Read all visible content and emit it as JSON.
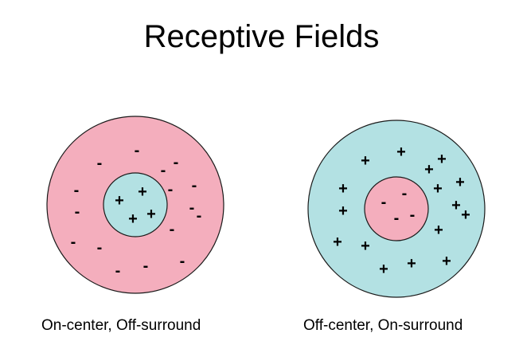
{
  "title": "Receptive Fields",
  "colors": {
    "pink": "#f4aebd",
    "cyan": "#b3e1e3",
    "outline": "#1a1a1a"
  },
  "fields": [
    {
      "caption": "On-center, Off-surround",
      "center_sign": "+",
      "surround_sign": "-",
      "center_color": "cyan",
      "surround_color": "pink"
    },
    {
      "caption": "Off-center, On-surround",
      "center_sign": "-",
      "surround_sign": "+",
      "center_color": "pink",
      "surround_color": "cyan"
    }
  ]
}
